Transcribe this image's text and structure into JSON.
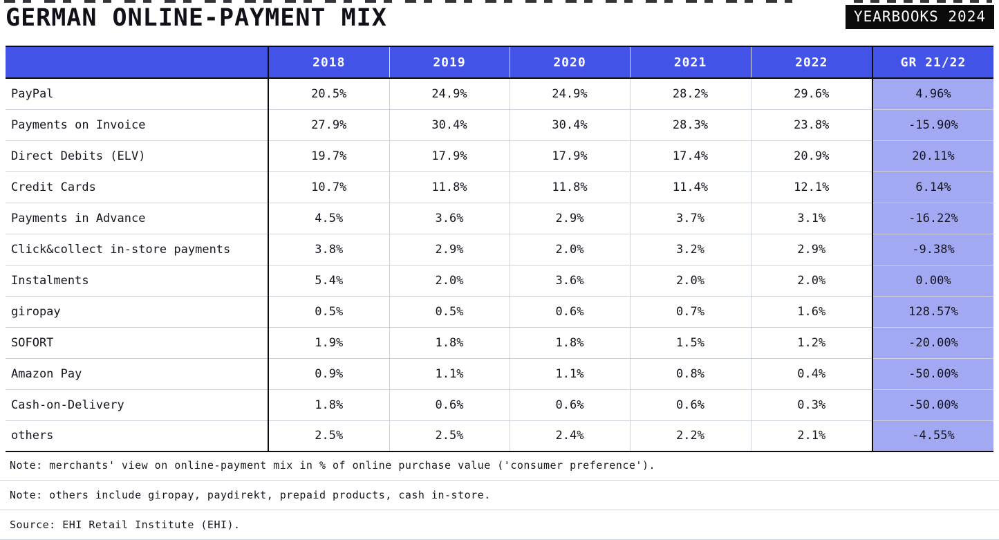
{
  "title": "GERMAN ONLINE-PAYMENT MIX",
  "badge": "YEARBOOKS 2024",
  "colors": {
    "header_bg": "#4353e8",
    "growth_bg": "#a2a9f2",
    "text": "#15151f",
    "line_light": "#ced2da",
    "line_strong": "#0c0c12",
    "badge_bg": "#0a0a0a",
    "badge_text": "#ffffff"
  },
  "table": {
    "columns": [
      "",
      "2018",
      "2019",
      "2020",
      "2021",
      "2022",
      "GR 21/22"
    ],
    "rows": [
      {
        "label": "PayPal",
        "values": [
          "20.5%",
          "24.9%",
          "24.9%",
          "28.2%",
          "29.6%"
        ],
        "growth": "4.96%"
      },
      {
        "label": "Payments on Invoice",
        "values": [
          "27.9%",
          "30.4%",
          "30.4%",
          "28.3%",
          "23.8%"
        ],
        "growth": "-15.90%"
      },
      {
        "label": "Direct Debits (ELV)",
        "values": [
          "19.7%",
          "17.9%",
          "17.9%",
          "17.4%",
          "20.9%"
        ],
        "growth": "20.11%"
      },
      {
        "label": "Credit Cards",
        "values": [
          "10.7%",
          "11.8%",
          "11.8%",
          "11.4%",
          "12.1%"
        ],
        "growth": "6.14%"
      },
      {
        "label": "Payments in Advance",
        "values": [
          "4.5%",
          "3.6%",
          "2.9%",
          "3.7%",
          "3.1%"
        ],
        "growth": "-16.22%"
      },
      {
        "label": "Click&collect in-store payments",
        "values": [
          "3.8%",
          "2.9%",
          "2.0%",
          "3.2%",
          "2.9%"
        ],
        "growth": "-9.38%"
      },
      {
        "label": "Instalments",
        "values": [
          "5.4%",
          "2.0%",
          "3.6%",
          "2.0%",
          "2.0%"
        ],
        "growth": "0.00%"
      },
      {
        "label": "giropay",
        "values": [
          "0.5%",
          "0.5%",
          "0.6%",
          "0.7%",
          "1.6%"
        ],
        "growth": "128.57%"
      },
      {
        "label": "SOFORT",
        "values": [
          "1.9%",
          "1.8%",
          "1.8%",
          "1.5%",
          "1.2%"
        ],
        "growth": "-20.00%"
      },
      {
        "label": "Amazon Pay",
        "values": [
          "0.9%",
          "1.1%",
          "1.1%",
          "0.8%",
          "0.4%"
        ],
        "growth": "-50.00%"
      },
      {
        "label": "Cash-on-Delivery",
        "values": [
          "1.8%",
          "0.6%",
          "0.6%",
          "0.6%",
          "0.3%"
        ],
        "growth": "-50.00%"
      },
      {
        "label": "others",
        "values": [
          "2.5%",
          "2.5%",
          "2.4%",
          "2.2%",
          "2.1%"
        ],
        "growth": "-4.55%"
      }
    ]
  },
  "notes": [
    "Note: merchants' view on online-payment mix in % of online purchase value ('consumer preference').",
    "Note: others include giropay, paydirekt, prepaid products, cash in-store.",
    "Source: EHI Retail Institute (EHI)."
  ],
  "chart_data": {
    "type": "table",
    "title": "GERMAN ONLINE-PAYMENT MIX",
    "categories": [
      "2018",
      "2019",
      "2020",
      "2021",
      "2022"
    ],
    "value_unit": "% of online purchase value",
    "series": [
      {
        "name": "PayPal",
        "values": [
          20.5,
          24.9,
          24.9,
          28.2,
          29.6
        ],
        "growth_21_22_pct": 4.96
      },
      {
        "name": "Payments on Invoice",
        "values": [
          27.9,
          30.4,
          30.4,
          28.3,
          23.8
        ],
        "growth_21_22_pct": -15.9
      },
      {
        "name": "Direct Debits (ELV)",
        "values": [
          19.7,
          17.9,
          17.9,
          17.4,
          20.9
        ],
        "growth_21_22_pct": 20.11
      },
      {
        "name": "Credit Cards",
        "values": [
          10.7,
          11.8,
          11.8,
          11.4,
          12.1
        ],
        "growth_21_22_pct": 6.14
      },
      {
        "name": "Payments in Advance",
        "values": [
          4.5,
          3.6,
          2.9,
          3.7,
          3.1
        ],
        "growth_21_22_pct": -16.22
      },
      {
        "name": "Click&collect in-store payments",
        "values": [
          3.8,
          2.9,
          2.0,
          3.2,
          2.9
        ],
        "growth_21_22_pct": -9.38
      },
      {
        "name": "Instalments",
        "values": [
          5.4,
          2.0,
          3.6,
          2.0,
          2.0
        ],
        "growth_21_22_pct": 0.0
      },
      {
        "name": "giropay",
        "values": [
          0.5,
          0.5,
          0.6,
          0.7,
          1.6
        ],
        "growth_21_22_pct": 128.57
      },
      {
        "name": "SOFORT",
        "values": [
          1.9,
          1.8,
          1.8,
          1.5,
          1.2
        ],
        "growth_21_22_pct": -20.0
      },
      {
        "name": "Amazon Pay",
        "values": [
          0.9,
          1.1,
          1.1,
          0.8,
          0.4
        ],
        "growth_21_22_pct": -50.0
      },
      {
        "name": "Cash-on-Delivery",
        "values": [
          1.8,
          0.6,
          0.6,
          0.6,
          0.3
        ],
        "growth_21_22_pct": -50.0
      },
      {
        "name": "others",
        "values": [
          2.5,
          2.5,
          2.4,
          2.2,
          2.1
        ],
        "growth_21_22_pct": -4.55
      }
    ],
    "notes": [
      "merchants' view on online-payment mix in % of online purchase value ('consumer preference')",
      "others include giropay, paydirekt, prepaid products, cash in-store"
    ],
    "source": "EHI Retail Institute (EHI)"
  }
}
